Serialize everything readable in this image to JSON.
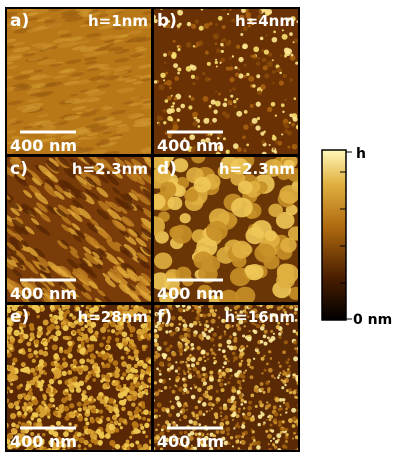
{
  "panels": [
    {
      "label": "a)",
      "height": "h=1nm",
      "scale": "400 nm"
    },
    {
      "label": "b)",
      "height": "h=4nm",
      "scale": "400 nm"
    },
    {
      "label": "c)",
      "height": "h=2.3nm",
      "scale": "400 nm"
    },
    {
      "label": "d)",
      "height": "h=2.3nm",
      "scale": "400 nm"
    },
    {
      "label": "e)",
      "height": "h=28nm",
      "scale": "400 nm"
    },
    {
      "label": "f)",
      "height": "h=16nm",
      "scale": "400 nm"
    }
  ],
  "colorbar": {
    "top_label": "h",
    "bottom_label": "0 nm"
  }
}
